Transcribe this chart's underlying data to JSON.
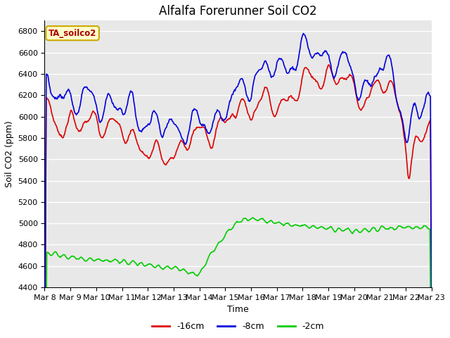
{
  "title": "Alfalfa Forerunner Soil CO2",
  "xlabel": "Time",
  "ylabel": "Soil CO2 (ppm)",
  "ylim": [
    4400,
    6900
  ],
  "yticks": [
    4400,
    4600,
    4800,
    5000,
    5200,
    5400,
    5600,
    5800,
    6000,
    6200,
    6400,
    6600,
    6800
  ],
  "x_labels": [
    "Mar 8",
    "Mar 9",
    "Mar 10",
    "Mar 11",
    "Mar 12",
    "Mar 13",
    "Mar 14",
    "Mar 15",
    "Mar 16",
    "Mar 17",
    "Mar 18",
    "Mar 19",
    "Mar 20",
    "Mar 21",
    "Mar 22",
    "Mar 23"
  ],
  "n_days": 15,
  "color_16cm": "#dd0000",
  "color_8cm": "#0000dd",
  "color_2cm": "#00cc00",
  "legend_labels": [
    "-16cm",
    "-8cm",
    "-2cm"
  ],
  "annotation_text": "TA_soilco2",
  "annotation_bg": "#ffffcc",
  "annotation_border": "#ccaa00",
  "background_color": "#e8e8e8",
  "title_fontsize": 12,
  "axis_label_fontsize": 9,
  "tick_fontsize": 8
}
